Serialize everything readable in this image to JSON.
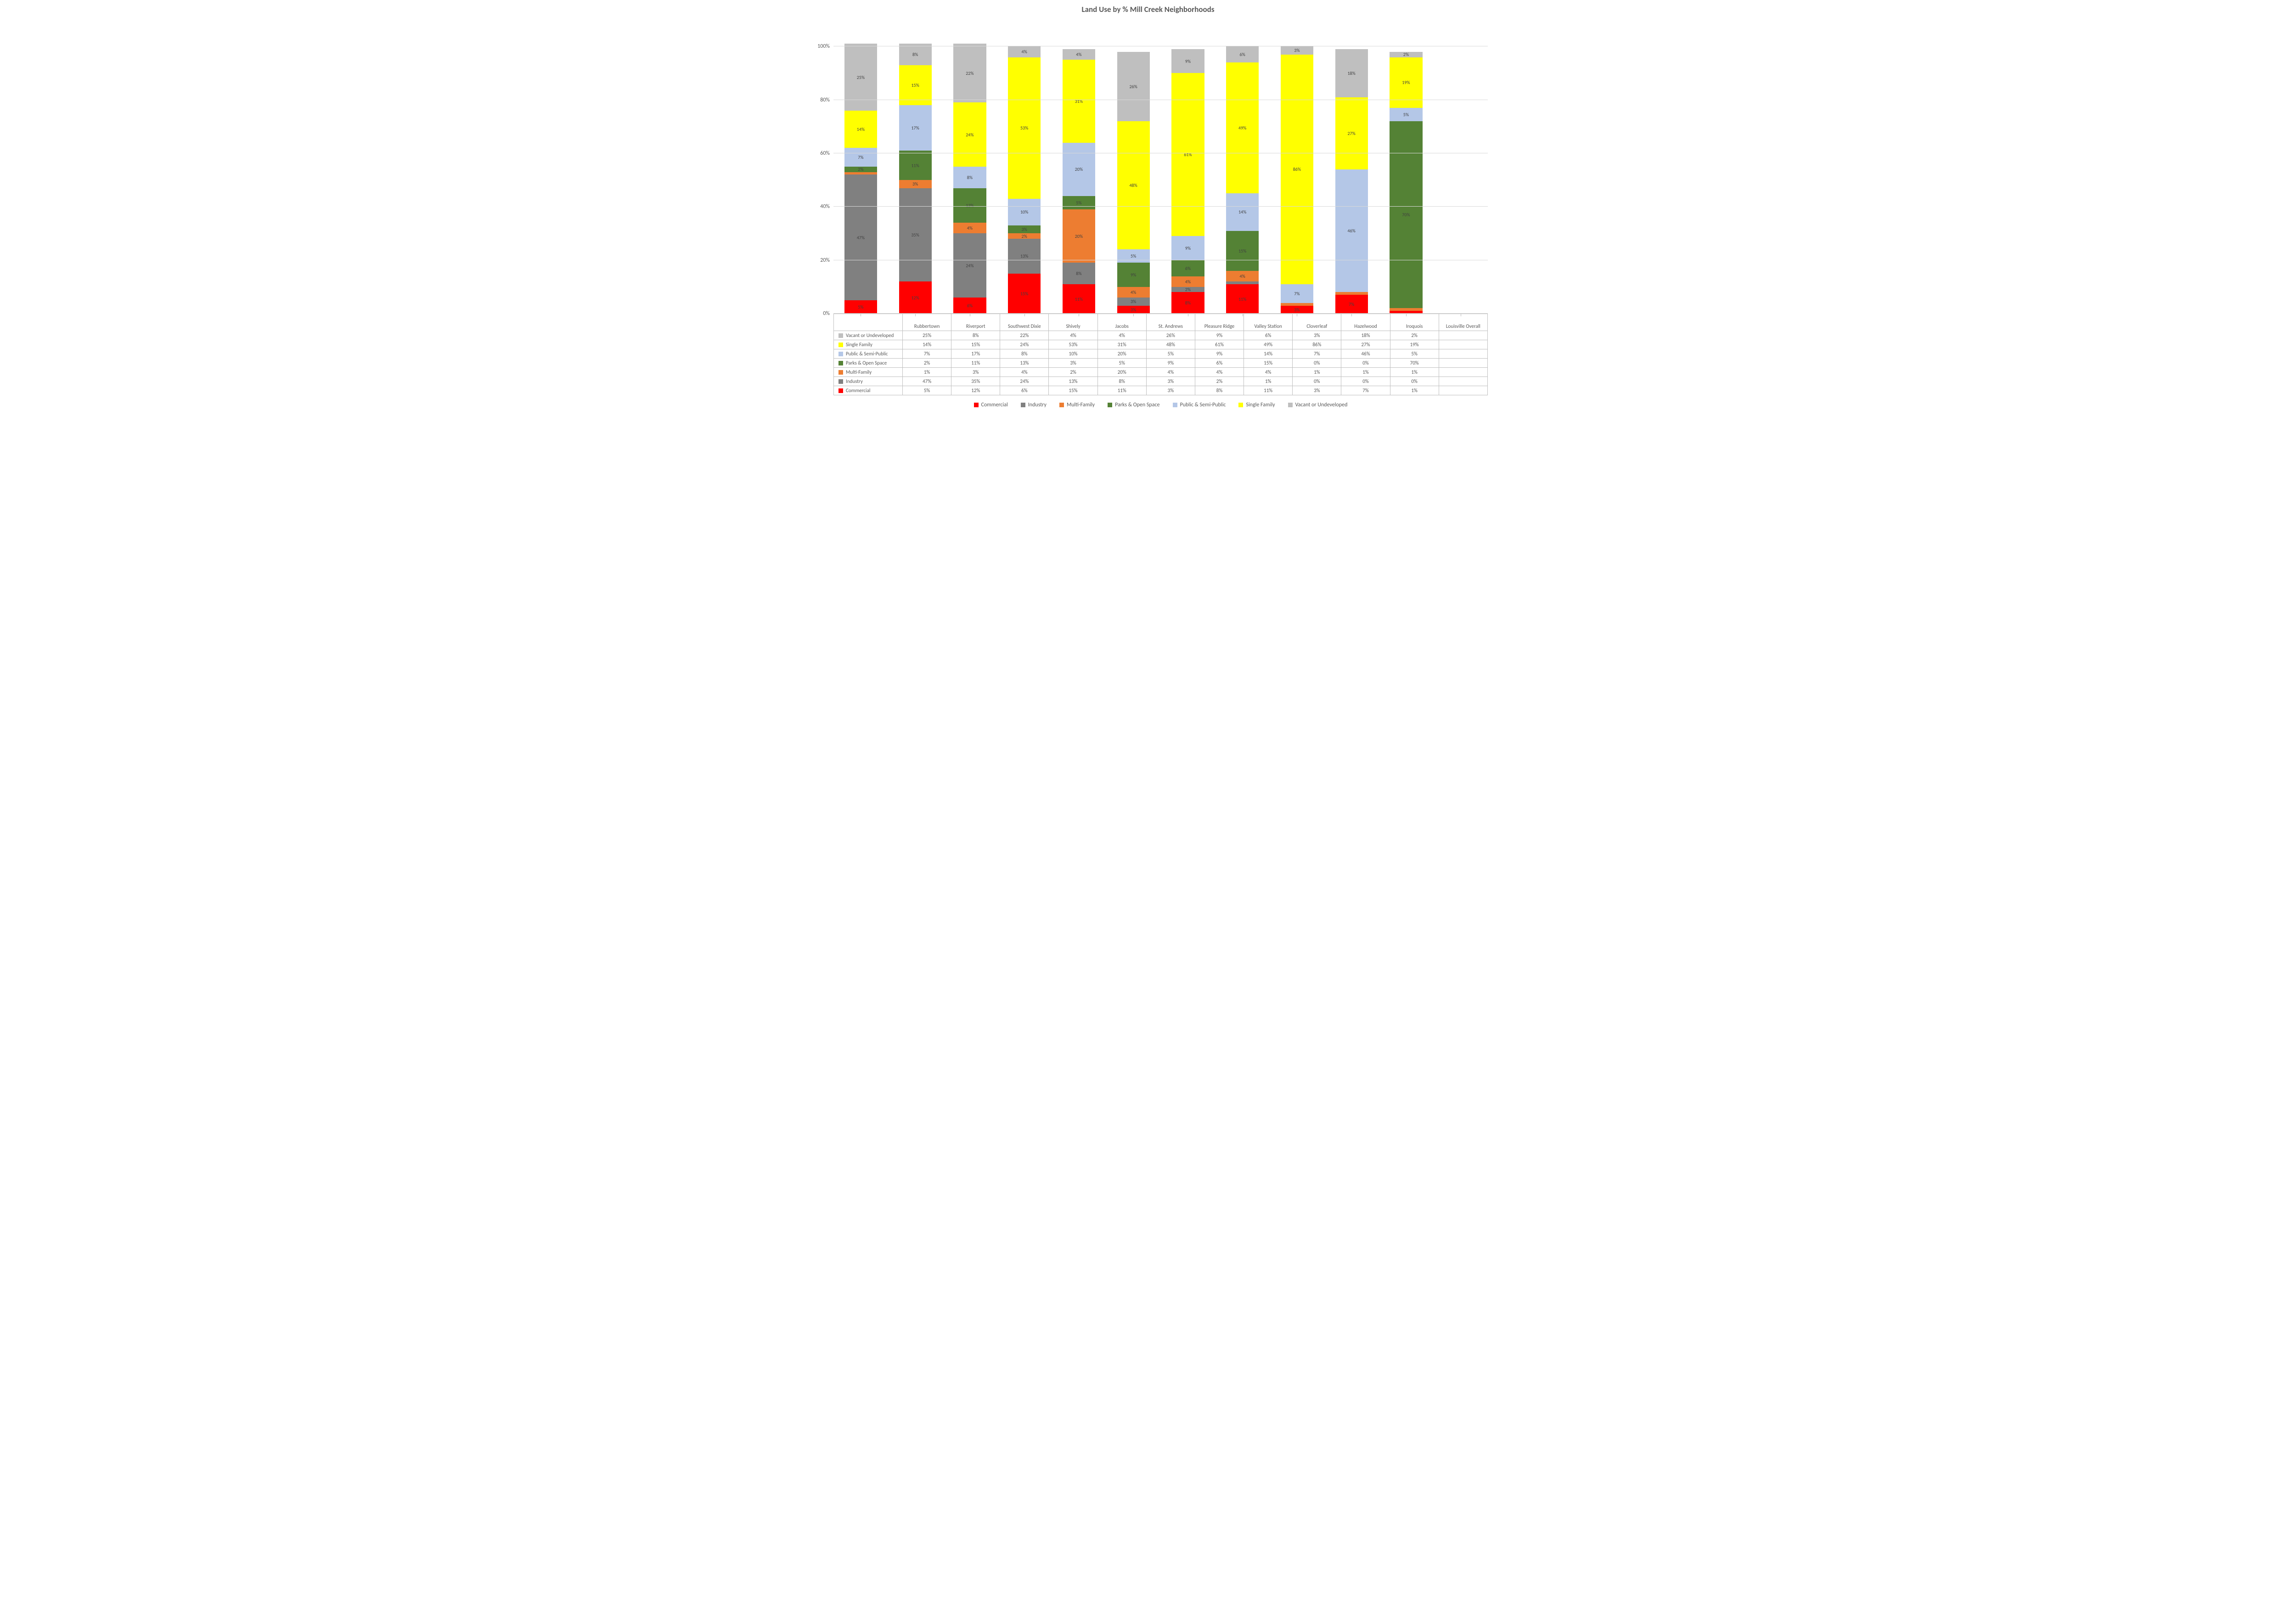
{
  "chart": {
    "title": "Land Use by % Mill Creek Neighborhoods",
    "type": "stacked-bar",
    "y_axis": {
      "min": 0,
      "max": 110,
      "ticks": [
        0,
        20,
        40,
        60,
        80,
        100
      ],
      "tick_labels": [
        "0%",
        "20%",
        "40%",
        "60%",
        "80%",
        "100%"
      ]
    },
    "background_color": "#ffffff",
    "grid_color": "#d9d9d9",
    "axis_color": "#bfbfbf",
    "label_fontsize": 12,
    "title_fontsize": 17,
    "series": [
      {
        "key": "commercial",
        "label": "Commercial",
        "color": "#ff0000"
      },
      {
        "key": "industry",
        "label": "Industry",
        "color": "#808080"
      },
      {
        "key": "multifamily",
        "label": "Multi-Family",
        "color": "#ed7d31"
      },
      {
        "key": "parks",
        "label": "Parks & Open Space",
        "color": "#548235"
      },
      {
        "key": "public",
        "label": "Public & Semi-Public",
        "color": "#b4c7e7"
      },
      {
        "key": "singfam",
        "label": "Single Family",
        "color": "#ffff00"
      },
      {
        "key": "vacant",
        "label": "Vacant or Undeveloped",
        "color": "#bfbfbf"
      }
    ],
    "table_row_order": [
      "vacant",
      "singfam",
      "public",
      "parks",
      "multifamily",
      "industry",
      "commercial"
    ],
    "categories": [
      {
        "name": "Rubbertown",
        "values": {
          "commercial": 5,
          "industry": 47,
          "multifamily": 1,
          "parks": 2,
          "public": 7,
          "singfam": 14,
          "vacant": 25
        }
      },
      {
        "name": "Riverport",
        "values": {
          "commercial": 12,
          "industry": 35,
          "multifamily": 3,
          "parks": 11,
          "public": 17,
          "singfam": 15,
          "vacant": 8
        }
      },
      {
        "name": "Southwest Dixie",
        "values": {
          "commercial": 6,
          "industry": 24,
          "multifamily": 4,
          "parks": 13,
          "public": 8,
          "singfam": 24,
          "vacant": 22
        }
      },
      {
        "name": "Shively",
        "values": {
          "commercial": 15,
          "industry": 13,
          "multifamily": 2,
          "parks": 3,
          "public": 10,
          "singfam": 53,
          "vacant": 4
        }
      },
      {
        "name": "Jacobs",
        "values": {
          "commercial": 11,
          "industry": 8,
          "multifamily": 20,
          "parks": 5,
          "public": 20,
          "singfam": 31,
          "vacant": 4
        }
      },
      {
        "name": "St. Andrews",
        "values": {
          "commercial": 3,
          "industry": 3,
          "multifamily": 4,
          "parks": 9,
          "public": 5,
          "singfam": 48,
          "vacant": 26
        }
      },
      {
        "name": "Pleasure Ridge",
        "values": {
          "commercial": 8,
          "industry": 2,
          "multifamily": 4,
          "parks": 6,
          "public": 9,
          "singfam": 61,
          "vacant": 9
        }
      },
      {
        "name": "Valley Station",
        "values": {
          "commercial": 11,
          "industry": 1,
          "multifamily": 4,
          "parks": 15,
          "public": 14,
          "singfam": 49,
          "vacant": 6
        }
      },
      {
        "name": "Cloverleaf",
        "values": {
          "commercial": 3,
          "industry": 0,
          "multifamily": 1,
          "parks": 0,
          "public": 7,
          "singfam": 86,
          "vacant": 3
        }
      },
      {
        "name": "Hazelwood",
        "values": {
          "commercial": 7,
          "industry": 0,
          "multifamily": 1,
          "parks": 0,
          "public": 46,
          "singfam": 27,
          "vacant": 18
        }
      },
      {
        "name": "Iroquois",
        "values": {
          "commercial": 1,
          "industry": 0,
          "multifamily": 1,
          "parks": 70,
          "public": 5,
          "singfam": 19,
          "vacant": 2
        }
      },
      {
        "name": "Louisville Overall",
        "values": {
          "commercial": null,
          "industry": null,
          "multifamily": null,
          "parks": null,
          "public": null,
          "singfam": null,
          "vacant": null
        }
      }
    ]
  }
}
